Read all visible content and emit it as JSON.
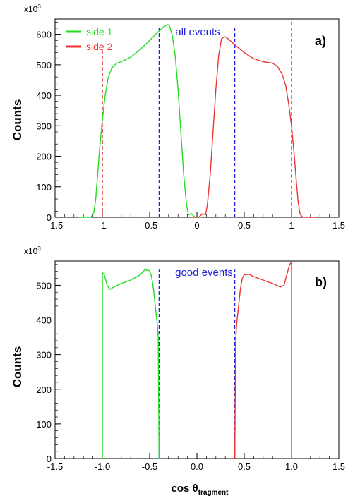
{
  "figure": {
    "xlabel_main": "cos θ",
    "xlabel_sub": "fragment",
    "y_multiplier_base": "x10",
    "y_multiplier_exp": "3"
  },
  "chart_data": [
    {
      "type": "line",
      "panel_label": "a)",
      "annotation": "all events",
      "annotation_color": "#2020e0",
      "ylabel": "Counts",
      "xlim": [
        -1.5,
        1.5
      ],
      "ylim": [
        0,
        650
      ],
      "x_ticks": [
        -1.5,
        -1.0,
        -0.5,
        0.0,
        0.5,
        1.0,
        1.5
      ],
      "x_tick_labels": [
        "-1.5",
        "-1",
        "-0.5",
        "0",
        "0.5",
        "1",
        "1.5"
      ],
      "y_ticks": [
        0,
        100,
        200,
        300,
        400,
        500,
        600
      ],
      "y_tick_labels": [
        "0",
        "100",
        "200",
        "300",
        "400",
        "500",
        "600"
      ],
      "legend_position": "top-left",
      "series": [
        {
          "name": "side 1",
          "color": "#22dd22",
          "x": [
            -1.25,
            -1.12,
            -1.09,
            -1.07,
            -1.05,
            -1.03,
            -1.0,
            -0.97,
            -0.94,
            -0.9,
            -0.85,
            -0.8,
            -0.7,
            -0.6,
            -0.5,
            -0.42,
            -0.35,
            -0.31,
            -0.29,
            -0.26,
            -0.23,
            -0.2,
            -0.17,
            -0.14,
            -0.11,
            -0.09,
            -0.06,
            -0.02,
            0.05
          ],
          "y": [
            0,
            0,
            15,
            60,
            140,
            220,
            320,
            400,
            455,
            490,
            505,
            510,
            525,
            550,
            580,
            605,
            625,
            632,
            628,
            595,
            530,
            420,
            280,
            140,
            40,
            8,
            12,
            0,
            0
          ]
        },
        {
          "name": "side 2",
          "color": "#ee3333",
          "x": [
            -0.05,
            0.02,
            0.06,
            0.09,
            0.11,
            0.14,
            0.17,
            0.2,
            0.23,
            0.26,
            0.29,
            0.31,
            0.35,
            0.42,
            0.5,
            0.6,
            0.7,
            0.8,
            0.85,
            0.9,
            0.94,
            0.97,
            1.0,
            1.03,
            1.05,
            1.07,
            1.09,
            1.12,
            1.25
          ],
          "y": [
            0,
            0,
            12,
            8,
            40,
            140,
            280,
            420,
            530,
            585,
            592,
            590,
            580,
            560,
            540,
            520,
            510,
            505,
            495,
            470,
            430,
            370,
            300,
            200,
            120,
            50,
            10,
            0,
            0
          ]
        }
      ],
      "vlines": [
        {
          "x": -1.0,
          "color": "#dd2222",
          "style": "dashed",
          "ymax": 548
        },
        {
          "x": 1.0,
          "color": "#dd2222",
          "style": "dashed",
          "ymax": 650
        },
        {
          "x": -0.4,
          "color": "#2020e0",
          "style": "dashed",
          "ymax": 620
        },
        {
          "x": 0.4,
          "color": "#2020e0",
          "style": "dashed",
          "ymax": 620
        }
      ]
    },
    {
      "type": "line",
      "panel_label": "b)",
      "annotation": "good events",
      "annotation_color": "#2020e0",
      "ylabel": "Counts",
      "xlim": [
        -1.5,
        1.5
      ],
      "ylim": [
        0,
        570
      ],
      "x_ticks": [
        -1.5,
        -1.0,
        -0.5,
        0.0,
        0.5,
        1.0,
        1.5
      ],
      "x_tick_labels": [
        "-1.5",
        "-1.0",
        "-0.5",
        "0.0",
        "0.5",
        "1.0",
        "1.5"
      ],
      "y_ticks": [
        0,
        100,
        200,
        300,
        400,
        500
      ],
      "y_tick_labels": [
        "0",
        "100",
        "200",
        "300",
        "400",
        "500"
      ],
      "series": [
        {
          "color": "#22dd22",
          "x": [
            -1.0,
            -1.0,
            -0.98,
            -0.95,
            -0.92,
            -0.88,
            -0.8,
            -0.7,
            -0.6,
            -0.55,
            -0.5,
            -0.48,
            -0.46,
            -0.44,
            -0.42,
            -0.41,
            -0.4
          ],
          "y": [
            0,
            537,
            530,
            500,
            488,
            495,
            505,
            515,
            530,
            545,
            542,
            525,
            490,
            440,
            390,
            350,
            0
          ]
        },
        {
          "color": "#ee3333",
          "x": [
            0.4,
            0.41,
            0.42,
            0.44,
            0.46,
            0.48,
            0.5,
            0.55,
            0.6,
            0.7,
            0.8,
            0.88,
            0.92,
            0.95,
            0.98,
            1.0,
            1.0
          ],
          "y": [
            0,
            340,
            390,
            440,
            490,
            520,
            530,
            532,
            525,
            515,
            505,
            495,
            500,
            530,
            560,
            567,
            0
          ]
        }
      ],
      "vlines": [
        {
          "x": -0.4,
          "color": "#2020e0",
          "style": "dashed",
          "ymax": 545
        },
        {
          "x": 0.4,
          "color": "#2020e0",
          "style": "dashed",
          "ymax": 545
        }
      ]
    }
  ]
}
